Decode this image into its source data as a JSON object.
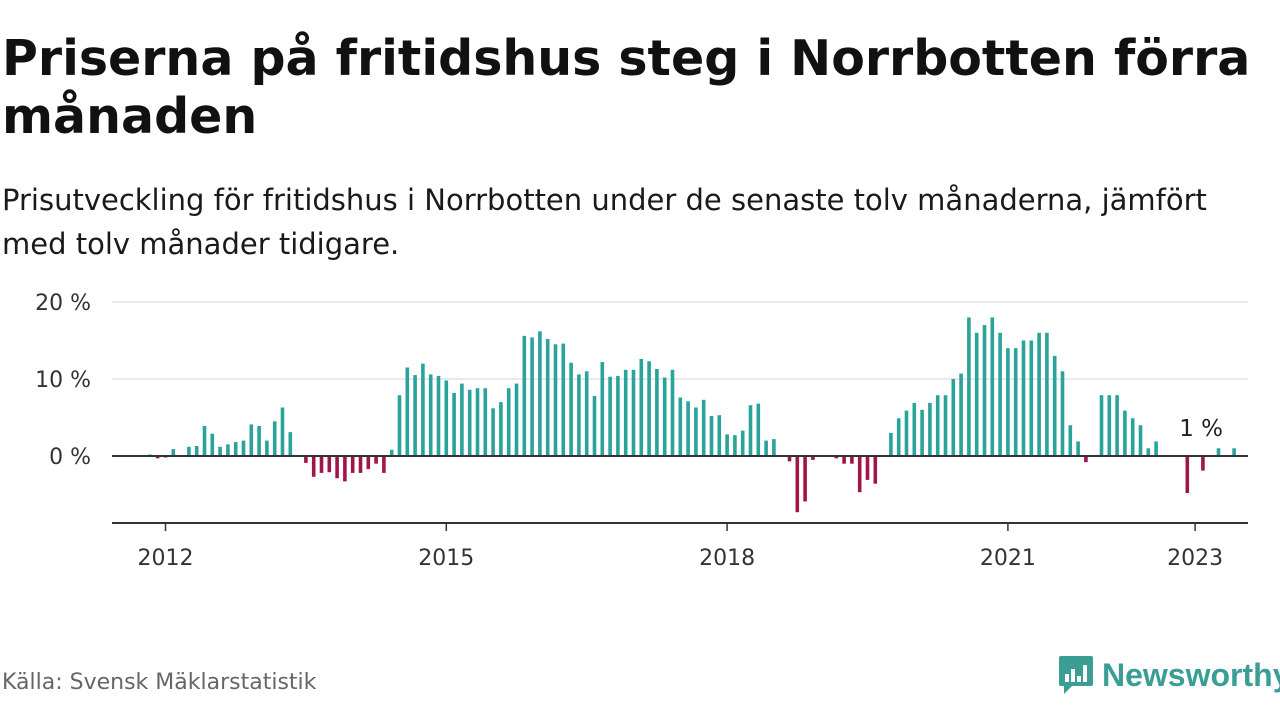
{
  "header": {
    "title": "Priserna på fritidshus steg i Norrbotten förra månaden",
    "subtitle": "Prisutveckling för fritidshus i Norrbotten under de senaste tolv månaderna, jämfört med tolv månader tidigare."
  },
  "footer": {
    "source": "Källa: Svensk Mäklarstatistik",
    "brand": "Newsworthy"
  },
  "colors": {
    "positive": "#2aa39a",
    "negative": "#a0154a",
    "grid": "#dddddd",
    "axis": "#333333"
  },
  "chart_data": {
    "type": "bar",
    "title": "Priserna på fritidshus steg i Norrbotten förra månaden",
    "ylabel": "",
    "ylim": [
      -9,
      20
    ],
    "yticks": [
      0,
      10,
      20
    ],
    "ytick_labels": [
      "0 %",
      "10 %",
      "20 %"
    ],
    "xticks": [
      2012,
      2015,
      2018,
      2021,
      2023
    ],
    "x_start": {
      "year": 2011,
      "month": 11
    },
    "annotation": {
      "text": "1 %",
      "index": 134
    },
    "values": [
      0.2,
      -0.3,
      -0.2,
      0.9,
      0,
      1.2,
      1.3,
      3.9,
      2.9,
      1.2,
      1.5,
      1.8,
      2.0,
      4.1,
      3.9,
      2.0,
      4.5,
      6.3,
      3.1,
      0,
      -0.9,
      -2.7,
      -2.2,
      -2.1,
      -2.9,
      -3.3,
      -2.2,
      -2.2,
      -1.7,
      -1.0,
      -2.2,
      0.8,
      7.9,
      11.5,
      10.5,
      12.0,
      10.6,
      10.4,
      9.8,
      8.2,
      9.4,
      8.6,
      8.8,
      8.8,
      6.2,
      7.0,
      8.8,
      9.4,
      15.6,
      15.4,
      16.2,
      15.2,
      14.5,
      14.6,
      12.1,
      10.6,
      11.0,
      7.8,
      12.2,
      10.3,
      10.4,
      11.2,
      11.2,
      12.6,
      12.3,
      11.3,
      10.2,
      11.2,
      7.6,
      7.1,
      6.3,
      7.3,
      5.2,
      5.3,
      2.8,
      2.7,
      3.3,
      6.6,
      6.8,
      2.0,
      2.2,
      0,
      -0.7,
      -7.3,
      -5.9,
      -0.5,
      0,
      0,
      -0.3,
      -1.0,
      -1.0,
      -4.7,
      -3.1,
      -3.6,
      0,
      3.0,
      4.9,
      5.9,
      6.9,
      6.0,
      6.9,
      7.9,
      7.9,
      10.0,
      10.7,
      18.0,
      16.0,
      17.0,
      18.0,
      16.0,
      14.0,
      14.0,
      15.0,
      15.0,
      16.0,
      16.0,
      13.0,
      11.0,
      4.0,
      1.9,
      -0.8,
      0,
      7.9,
      7.9,
      7.9,
      5.9,
      4.9,
      4.0,
      1.0,
      1.9,
      0,
      0,
      0,
      -4.8,
      0,
      -1.9,
      0,
      1.0,
      0,
      1.0
    ]
  }
}
